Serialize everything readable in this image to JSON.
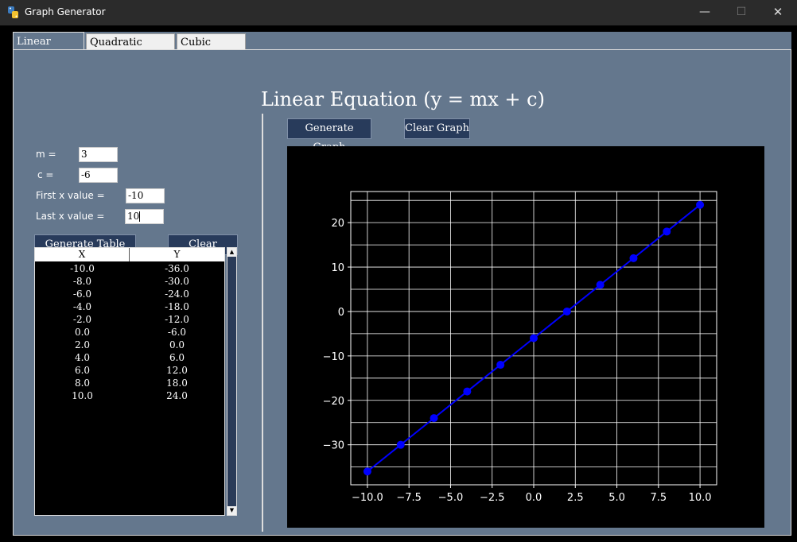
{
  "window": {
    "title": "Graph Generator"
  },
  "tabs": [
    {
      "label": "Linear Graph",
      "active": true
    },
    {
      "label": "Quadratic Graph",
      "active": false
    },
    {
      "label": "Cubic Graph",
      "active": false
    }
  ],
  "title": "Linear Equation (y = mx + c)",
  "inputs": {
    "m": {
      "label": "m =",
      "value": "3"
    },
    "c": {
      "label": "c =",
      "value": "-6"
    },
    "first_x": {
      "label": "First x value =",
      "value": "-10"
    },
    "last_x": {
      "label": "Last x value =",
      "value": "10"
    }
  },
  "buttons": {
    "generate_table": "Generate Table",
    "clear": "Clear",
    "generate_graph": "Generate Graph",
    "clear_graph": "Clear Graph"
  },
  "table": {
    "headers": [
      "X",
      "Y"
    ],
    "rows": [
      [
        "-10.0",
        "-36.0"
      ],
      [
        "-8.0",
        "-30.0"
      ],
      [
        "-6.0",
        "-24.0"
      ],
      [
        "-4.0",
        "-18.0"
      ],
      [
        "-2.0",
        "-12.0"
      ],
      [
        "0.0",
        "-6.0"
      ],
      [
        "2.0",
        "0.0"
      ],
      [
        "4.0",
        "6.0"
      ],
      [
        "6.0",
        "12.0"
      ],
      [
        "8.0",
        "18.0"
      ],
      [
        "10.0",
        "24.0"
      ]
    ]
  },
  "colors": {
    "panel": "#64778d",
    "button": "#283b5b",
    "line": "#0000ff",
    "grid": "#ffffff"
  },
  "chart_data": {
    "type": "line",
    "x": [
      -10,
      -8,
      -6,
      -4,
      -2,
      0,
      2,
      4,
      6,
      8,
      10
    ],
    "series": [
      {
        "values": [
          -36,
          -30,
          -24,
          -18,
          -12,
          -6,
          0,
          6,
          12,
          18,
          24
        ],
        "color": "#0000ff",
        "marker": "circle"
      }
    ],
    "xlim": [
      -11,
      11
    ],
    "ylim": [
      -39,
      27
    ],
    "xticks": [
      -10,
      -7.5,
      -5,
      -2.5,
      0,
      2.5,
      5,
      7.5,
      10
    ],
    "xtick_labels": [
      "−10.0",
      "−7.5",
      "−5.0",
      "−2.5",
      "0.0",
      "2.5",
      "5.0",
      "7.5",
      "10.0"
    ],
    "yticks": [
      -30,
      -20,
      -10,
      0,
      10,
      20
    ],
    "ytick_labels": [
      "−30",
      "−20",
      "−10",
      "0",
      "10",
      "20"
    ],
    "xgrid": [
      -10,
      -7.5,
      -5,
      -2.5,
      0,
      2.5,
      5,
      7.5,
      10
    ],
    "ygrid": [
      -35,
      -30,
      -25,
      -20,
      -15,
      -10,
      -5,
      0,
      5,
      10,
      15,
      20,
      25
    ],
    "grid": true,
    "background": "#000000"
  }
}
